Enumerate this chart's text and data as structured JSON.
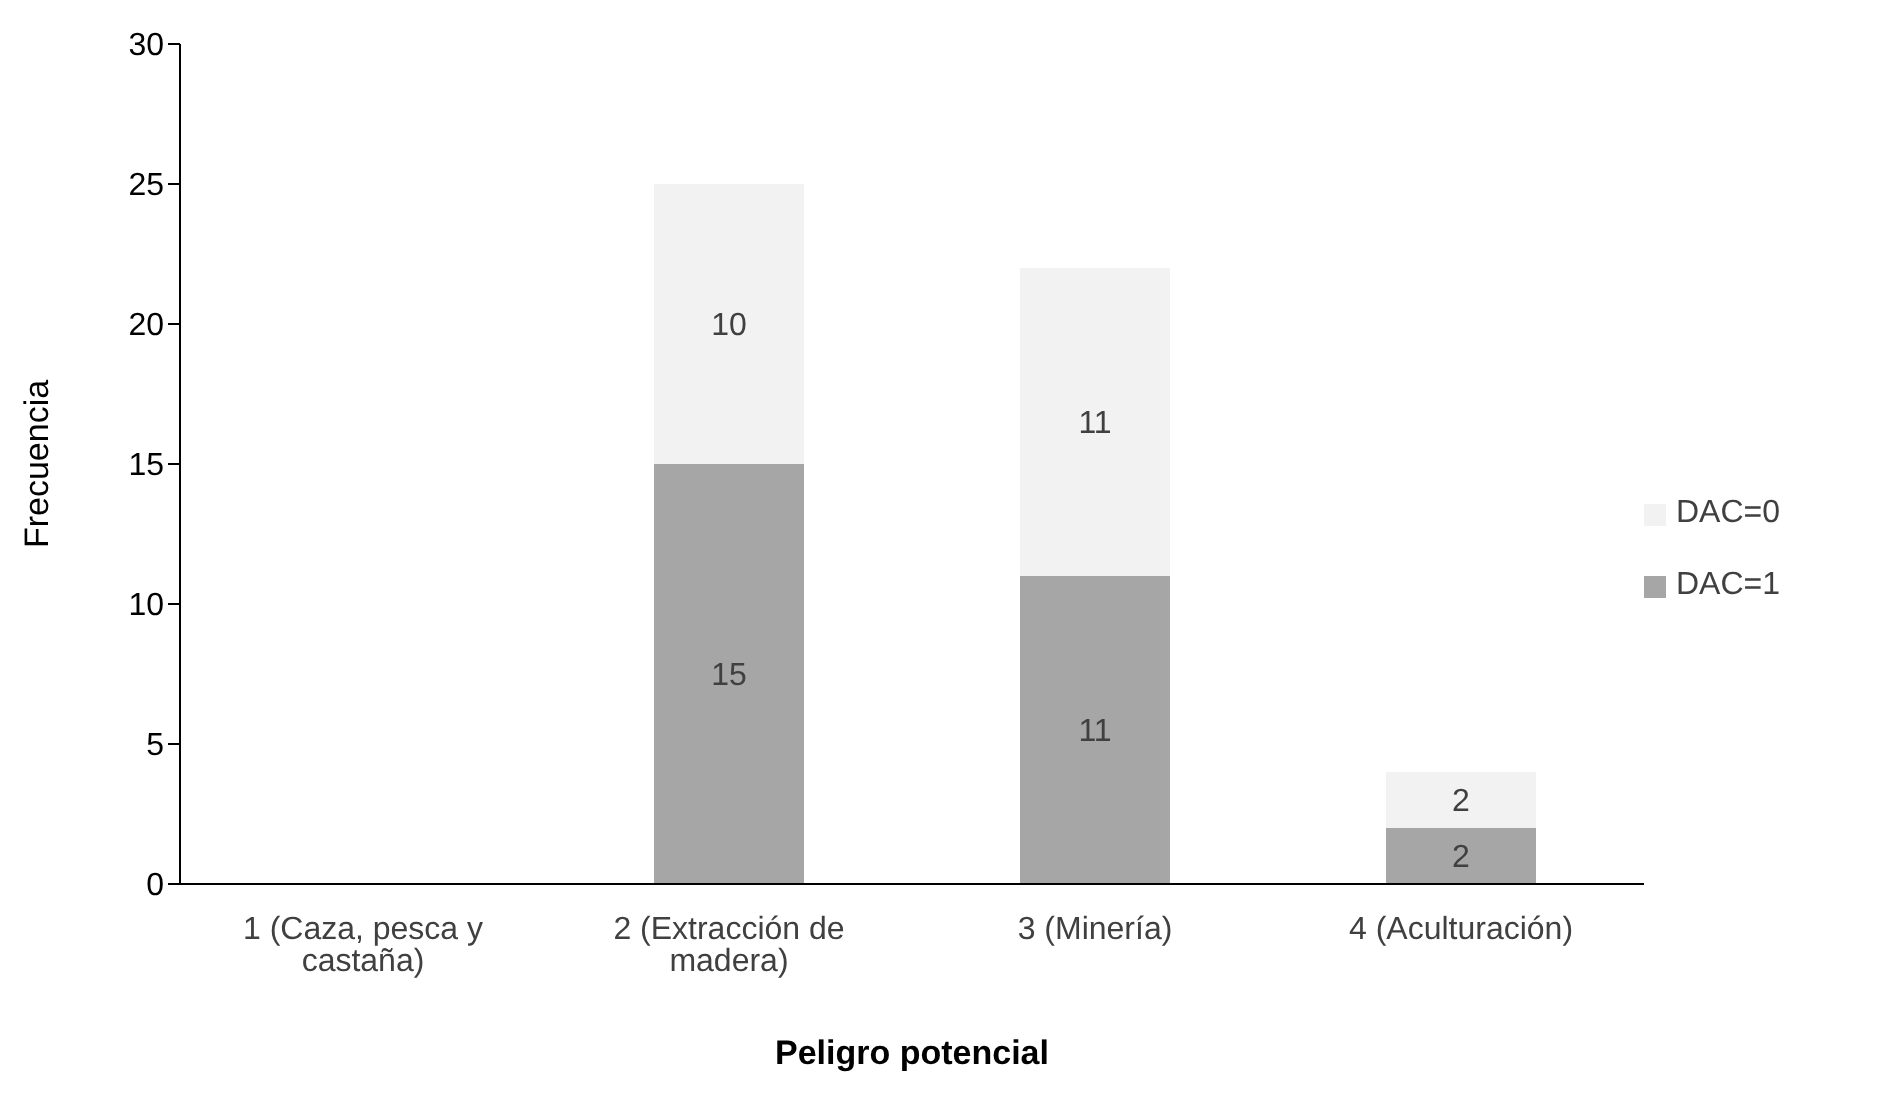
{
  "chart_data": {
    "type": "bar",
    "xlabel": "Peligro potencial",
    "ylabel": "Frecuencia",
    "categories": [
      "1 (Caza, pesca y castaña)",
      "2 (Extracción de madera)",
      "3 (Minería)",
      "4 (Aculturación)"
    ],
    "stacked": true,
    "series": [
      {
        "name": "DAC=1",
        "color": "#a6a6a6",
        "values": [
          null,
          15,
          11,
          2
        ]
      },
      {
        "name": "DAC=0",
        "color": "#f2f2f2",
        "values": [
          null,
          10,
          11,
          2
        ]
      }
    ],
    "ylim": [
      0,
      30
    ],
    "yticks": [
      0,
      5,
      10,
      15,
      20,
      25,
      30
    ],
    "grid": false,
    "legend": "right",
    "data_labels": true
  }
}
